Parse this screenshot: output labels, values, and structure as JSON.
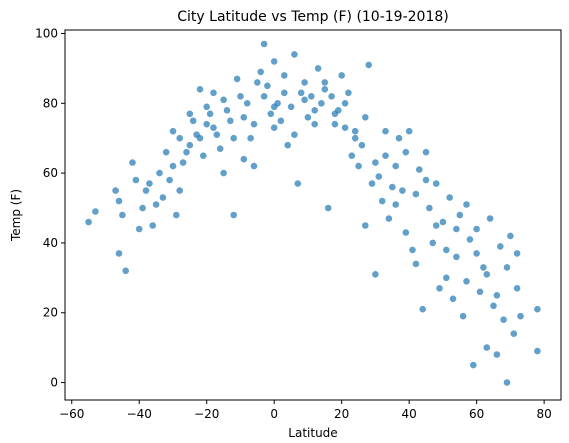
{
  "chart_data": {
    "type": "scatter",
    "title": "City Latitude vs Temp (F) (10-19-2018)",
    "xlabel": "Latitude",
    "ylabel": "Temp (F)",
    "xlim": [
      -62,
      85
    ],
    "ylim": [
      -5,
      101
    ],
    "xticks": [
      -60,
      -40,
      -20,
      0,
      20,
      40,
      60,
      80
    ],
    "yticks": [
      0,
      20,
      40,
      60,
      80,
      100
    ],
    "grid": false,
    "marker_color": "#1f77b4",
    "marker_alpha": 0.7,
    "points": [
      [
        -55,
        46
      ],
      [
        -53,
        49
      ],
      [
        -47,
        55
      ],
      [
        -46,
        52
      ],
      [
        -46,
        37
      ],
      [
        -45,
        48
      ],
      [
        -44,
        32
      ],
      [
        -42,
        63
      ],
      [
        -41,
        58
      ],
      [
        -40,
        44
      ],
      [
        -39,
        50
      ],
      [
        -38,
        55
      ],
      [
        -37,
        57
      ],
      [
        -36,
        45
      ],
      [
        -35,
        51
      ],
      [
        -34,
        60
      ],
      [
        -33,
        53
      ],
      [
        -32,
        66
      ],
      [
        -31,
        58
      ],
      [
        -30,
        62
      ],
      [
        -29,
        48
      ],
      [
        -28,
        55
      ],
      [
        -27,
        63
      ],
      [
        -26,
        66
      ],
      [
        -25,
        68
      ],
      [
        -24,
        75
      ],
      [
        -23,
        71
      ],
      [
        -22,
        70
      ],
      [
        -21,
        65
      ],
      [
        -20,
        74
      ],
      [
        -19,
        77
      ],
      [
        -18,
        83
      ],
      [
        -17,
        71
      ],
      [
        -16,
        67
      ],
      [
        -15,
        60
      ],
      [
        -14,
        78
      ],
      [
        -13,
        75
      ],
      [
        -12,
        48
      ],
      [
        -11,
        87
      ],
      [
        -10,
        82
      ],
      [
        -9,
        76
      ],
      [
        -8,
        80
      ],
      [
        -7,
        70
      ],
      [
        -6,
        62
      ],
      [
        -5,
        86
      ],
      [
        -4,
        89
      ],
      [
        -3,
        97
      ],
      [
        -2,
        85
      ],
      [
        -1,
        77
      ],
      [
        0,
        73
      ],
      [
        0,
        92
      ],
      [
        1,
        80
      ],
      [
        2,
        75
      ],
      [
        3,
        83
      ],
      [
        4,
        68
      ],
      [
        5,
        79
      ],
      [
        6,
        94
      ],
      [
        7,
        57
      ],
      [
        8,
        83
      ],
      [
        9,
        81
      ],
      [
        10,
        76
      ],
      [
        11,
        82
      ],
      [
        12,
        74
      ],
      [
        13,
        90
      ],
      [
        14,
        80
      ],
      [
        15,
        86
      ],
      [
        16,
        50
      ],
      [
        17,
        82
      ],
      [
        18,
        74
      ],
      [
        19,
        78
      ],
      [
        20,
        88
      ],
      [
        21,
        73
      ],
      [
        22,
        83
      ],
      [
        23,
        65
      ],
      [
        24,
        72
      ],
      [
        25,
        62
      ],
      [
        26,
        68
      ],
      [
        27,
        45
      ],
      [
        28,
        91
      ],
      [
        29,
        57
      ],
      [
        30,
        31
      ],
      [
        31,
        59
      ],
      [
        32,
        52
      ],
      [
        33,
        65
      ],
      [
        34,
        47
      ],
      [
        35,
        56
      ],
      [
        36,
        62
      ],
      [
        37,
        70
      ],
      [
        38,
        55
      ],
      [
        39,
        43
      ],
      [
        40,
        72
      ],
      [
        41,
        38
      ],
      [
        42,
        34
      ],
      [
        43,
        61
      ],
      [
        44,
        21
      ],
      [
        45,
        66
      ],
      [
        46,
        50
      ],
      [
        47,
        40
      ],
      [
        48,
        57
      ],
      [
        49,
        27
      ],
      [
        50,
        46
      ],
      [
        51,
        30
      ],
      [
        52,
        53
      ],
      [
        53,
        24
      ],
      [
        54,
        36
      ],
      [
        55,
        48
      ],
      [
        56,
        19
      ],
      [
        57,
        51
      ],
      [
        58,
        41
      ],
      [
        59,
        5
      ],
      [
        60,
        44
      ],
      [
        61,
        26
      ],
      [
        62,
        33
      ],
      [
        63,
        10
      ],
      [
        64,
        47
      ],
      [
        65,
        22
      ],
      [
        66,
        8
      ],
      [
        67,
        39
      ],
      [
        68,
        18
      ],
      [
        69,
        0
      ],
      [
        70,
        42
      ],
      [
        71,
        14
      ],
      [
        72,
        37
      ],
      [
        73,
        19
      ],
      [
        78,
        9
      ],
      [
        78,
        21
      ],
      [
        -30,
        72
      ],
      [
        -28,
        70
      ],
      [
        -25,
        77
      ],
      [
        -22,
        84
      ],
      [
        -20,
        79
      ],
      [
        -18,
        73
      ],
      [
        -15,
        81
      ],
      [
        -12,
        70
      ],
      [
        -9,
        64
      ],
      [
        -6,
        74
      ],
      [
        -3,
        82
      ],
      [
        0,
        79
      ],
      [
        3,
        88
      ],
      [
        6,
        71
      ],
      [
        9,
        86
      ],
      [
        12,
        78
      ],
      [
        15,
        84
      ],
      [
        18,
        77
      ],
      [
        21,
        80
      ],
      [
        24,
        70
      ],
      [
        27,
        76
      ],
      [
        30,
        63
      ],
      [
        33,
        72
      ],
      [
        36,
        51
      ],
      [
        39,
        66
      ],
      [
        42,
        54
      ],
      [
        45,
        58
      ],
      [
        48,
        45
      ],
      [
        51,
        38
      ],
      [
        54,
        44
      ],
      [
        57,
        29
      ],
      [
        60,
        37
      ],
      [
        63,
        31
      ],
      [
        66,
        25
      ],
      [
        69,
        33
      ],
      [
        72,
        27
      ]
    ]
  }
}
